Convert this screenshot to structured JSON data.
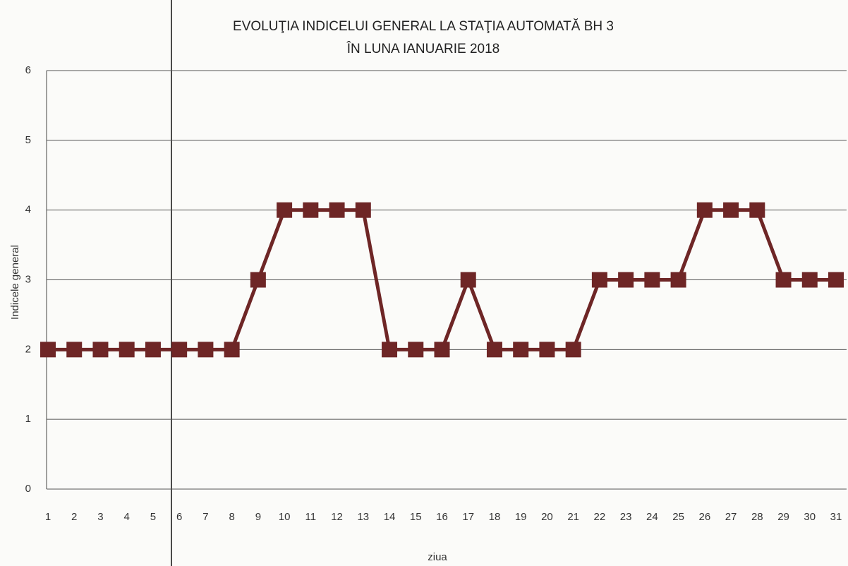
{
  "chart_data": {
    "type": "line",
    "title": "EVOLUŢIA INDICELUI GENERAL LA STAŢIA AUTOMATĂ BH 3",
    "subtitle": "ÎN LUNA IANUARIE 2018",
    "x_label": "ziua",
    "y_label": "Indicele general",
    "categories": [
      "1",
      "2",
      "3",
      "4",
      "5",
      "6",
      "7",
      "8",
      "9",
      "10",
      "11",
      "12",
      "13",
      "14",
      "15",
      "16",
      "17",
      "18",
      "19",
      "20",
      "21",
      "22",
      "23",
      "24",
      "25",
      "26",
      "27",
      "28",
      "29",
      "30",
      "31"
    ],
    "series": [
      {
        "name": "Indicele general",
        "color": "#6e2626",
        "values": [
          2,
          2,
          2,
          2,
          2,
          2,
          2,
          2,
          3,
          4,
          4,
          4,
          4,
          2,
          2,
          2,
          3,
          2,
          2,
          2,
          2,
          3,
          3,
          3,
          3,
          4,
          4,
          4,
          3,
          3,
          3
        ]
      }
    ],
    "ylim": [
      0,
      6
    ],
    "yticks": [
      0,
      1,
      2,
      3,
      4,
      5,
      6
    ],
    "grid": true
  }
}
